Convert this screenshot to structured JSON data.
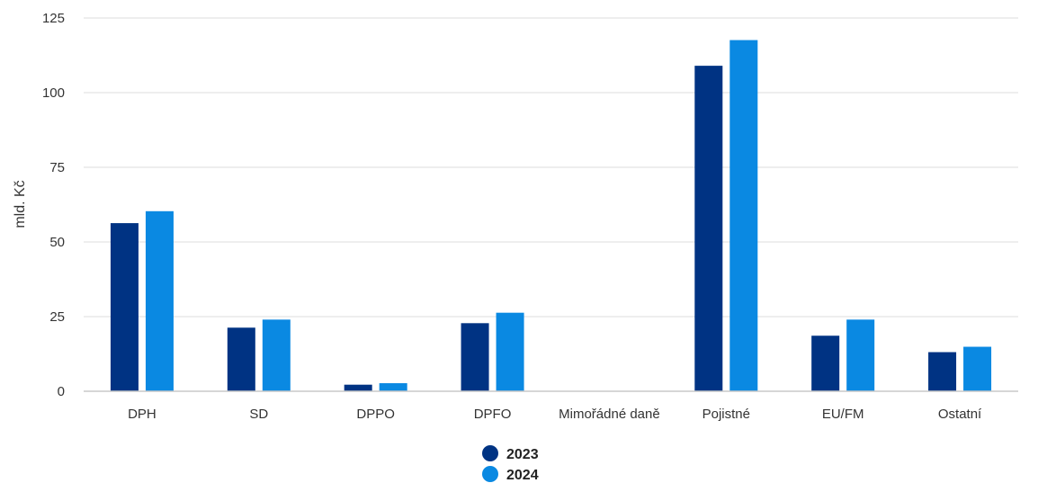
{
  "chart_data": {
    "type": "bar",
    "ylabel": "mld. Kč",
    "ylim": [
      0,
      125
    ],
    "yticks": [
      0,
      25,
      50,
      75,
      100,
      125
    ],
    "grid": true,
    "legend_position": "bottom-center",
    "categories": [
      "DPH",
      "SD",
      "DPPO",
      "DPFO",
      "Mimořádné daně",
      "Pojistné",
      "EU/FM",
      "Ostatní"
    ],
    "series": [
      {
        "name": "2023",
        "color": "#003383",
        "values": [
          56.3,
          21.3,
          2.2,
          22.8,
          0,
          109.0,
          18.6,
          13.1
        ]
      },
      {
        "name": "2024",
        "color": "#0a89e2",
        "values": [
          60.3,
          24.0,
          2.7,
          26.3,
          0,
          117.6,
          24.0,
          14.9
        ]
      }
    ]
  }
}
